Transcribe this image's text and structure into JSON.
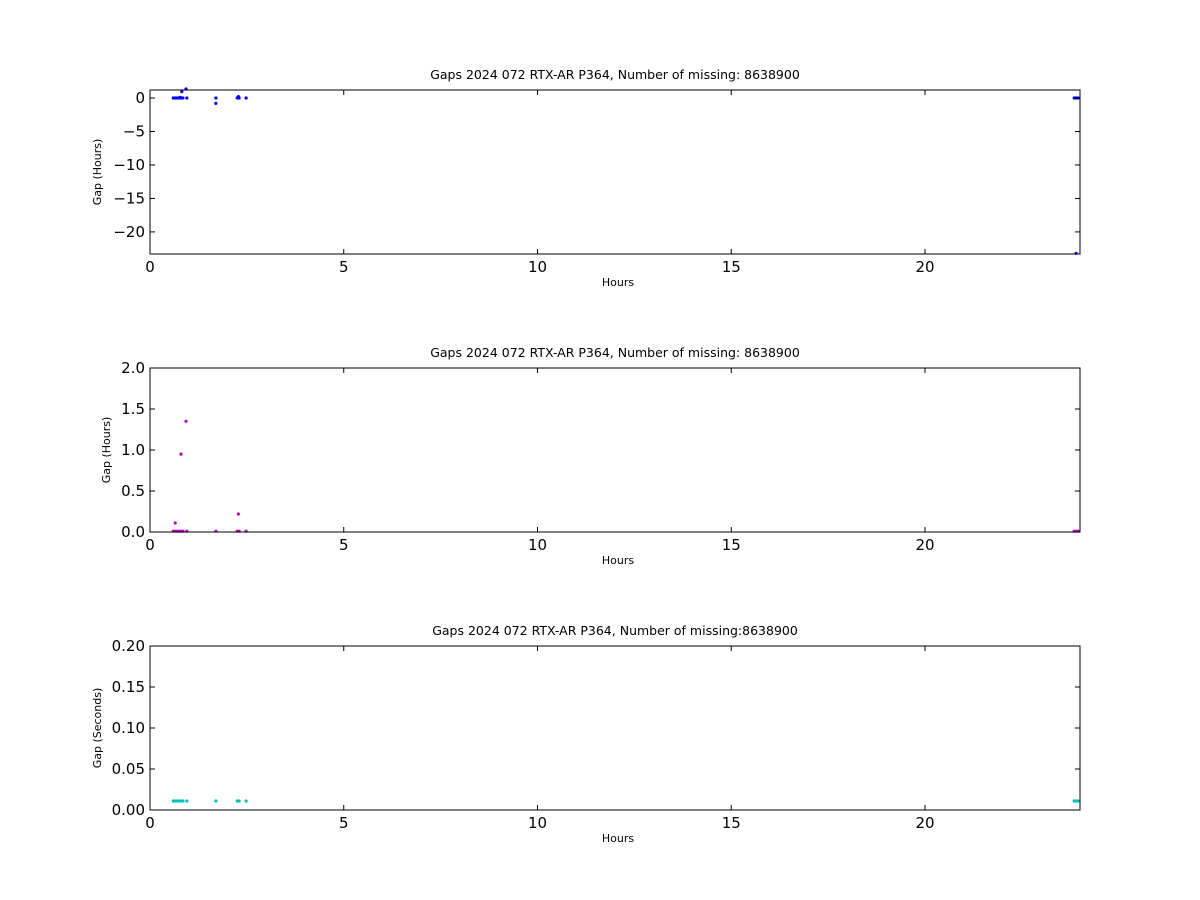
{
  "chart_data": [
    {
      "type": "scatter",
      "title": "Gaps 2024 072 RTX-AR  P364, Number of missing: 8638900",
      "xlabel": "Hours",
      "ylabel": "Gap (Hours)",
      "xlim": [
        0,
        24
      ],
      "ylim": [
        -23.3,
        1.2
      ],
      "xticks": [
        0,
        5,
        10,
        15,
        20
      ],
      "xtick_labels": [
        "0",
        "5",
        "10",
        "15",
        "20"
      ],
      "yticks": [
        0,
        -5,
        -10,
        -15,
        -20
      ],
      "ytick_labels": [
        "0",
        "−5",
        "−10",
        "−15",
        "−20"
      ],
      "grid": false,
      "color": "#0000ff",
      "points": [
        {
          "x": 0.6,
          "y": 0.01
        },
        {
          "x": 0.65,
          "y": 0.01
        },
        {
          "x": 0.7,
          "y": 0.01
        },
        {
          "x": 0.75,
          "y": 0.01
        },
        {
          "x": 0.78,
          "y": 0.1
        },
        {
          "x": 0.8,
          "y": 0.01
        },
        {
          "x": 0.82,
          "y": 0.95
        },
        {
          "x": 0.85,
          "y": 0.01
        },
        {
          "x": 0.93,
          "y": 1.35
        },
        {
          "x": 0.95,
          "y": 0.01
        },
        {
          "x": 1.7,
          "y": 0.01
        },
        {
          "x": 1.7,
          "y": -0.8
        },
        {
          "x": 2.25,
          "y": 0.01
        },
        {
          "x": 2.28,
          "y": 0.22
        },
        {
          "x": 2.3,
          "y": 0.01
        },
        {
          "x": 2.48,
          "y": 0.01
        },
        {
          "x": 23.85,
          "y": 0.01
        },
        {
          "x": 23.9,
          "y": 0.01
        },
        {
          "x": 23.95,
          "y": 0.01
        },
        {
          "x": 23.9,
          "y": -23.2
        }
      ]
    },
    {
      "type": "scatter",
      "title": "Gaps 2024 072 RTX-AR  P364, Number of missing: 8638900",
      "xlabel": "Hours",
      "ylabel": "Gap (Hours)",
      "xlim": [
        0,
        24
      ],
      "ylim": [
        0,
        2.0
      ],
      "xticks": [
        0,
        5,
        10,
        15,
        20
      ],
      "xtick_labels": [
        "0",
        "5",
        "10",
        "15",
        "20"
      ],
      "yticks": [
        0.0,
        0.5,
        1.0,
        1.5,
        2.0
      ],
      "ytick_labels": [
        "0.0",
        "0.5",
        "1.0",
        "1.5",
        "2.0"
      ],
      "grid": false,
      "color": "#bf00bf",
      "points": [
        {
          "x": 0.6,
          "y": 0.01
        },
        {
          "x": 0.65,
          "y": 0.01
        },
        {
          "x": 0.65,
          "y": 0.11
        },
        {
          "x": 0.7,
          "y": 0.01
        },
        {
          "x": 0.75,
          "y": 0.01
        },
        {
          "x": 0.8,
          "y": 0.01
        },
        {
          "x": 0.8,
          "y": 0.95
        },
        {
          "x": 0.85,
          "y": 0.01
        },
        {
          "x": 0.93,
          "y": 1.35
        },
        {
          "x": 0.95,
          "y": 0.01
        },
        {
          "x": 1.7,
          "y": 0.01
        },
        {
          "x": 2.25,
          "y": 0.01
        },
        {
          "x": 2.28,
          "y": 0.22
        },
        {
          "x": 2.3,
          "y": 0.01
        },
        {
          "x": 2.48,
          "y": 0.01
        },
        {
          "x": 23.85,
          "y": 0.01
        },
        {
          "x": 23.9,
          "y": 0.01
        },
        {
          "x": 23.95,
          "y": 0.01
        }
      ]
    },
    {
      "type": "scatter",
      "title": "Gaps 2024 072 RTX-AR  P364, Number of missing:8638900",
      "xlabel": "Hours",
      "ylabel": "Gap (Seconds)",
      "xlim": [
        0,
        24
      ],
      "ylim": [
        0,
        0.2
      ],
      "xticks": [
        0,
        5,
        10,
        15,
        20
      ],
      "xtick_labels": [
        "0",
        "5",
        "10",
        "15",
        "20"
      ],
      "yticks": [
        0.0,
        0.05,
        0.1,
        0.15,
        0.2
      ],
      "ytick_labels": [
        "0.00",
        "0.05",
        "0.10",
        "0.15",
        "0.20"
      ],
      "grid": false,
      "color": "#00bfbf",
      "points": [
        {
          "x": 0.6,
          "y": 0.011
        },
        {
          "x": 0.65,
          "y": 0.011
        },
        {
          "x": 0.7,
          "y": 0.011
        },
        {
          "x": 0.75,
          "y": 0.011
        },
        {
          "x": 0.8,
          "y": 0.011
        },
        {
          "x": 0.85,
          "y": 0.011
        },
        {
          "x": 0.95,
          "y": 0.011
        },
        {
          "x": 1.7,
          "y": 0.011
        },
        {
          "x": 2.25,
          "y": 0.011
        },
        {
          "x": 2.3,
          "y": 0.011
        },
        {
          "x": 2.48,
          "y": 0.011
        },
        {
          "x": 23.85,
          "y": 0.011
        },
        {
          "x": 23.9,
          "y": 0.011
        },
        {
          "x": 23.95,
          "y": 0.011
        }
      ]
    }
  ]
}
